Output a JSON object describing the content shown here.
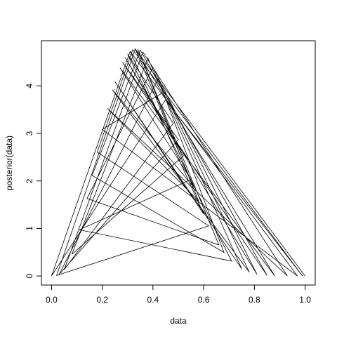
{
  "chart_data": {
    "type": "line",
    "title": "",
    "xlabel": "data",
    "ylabel": "posterior(data)",
    "xlim": [
      -0.04,
      1.04
    ],
    "ylim": [
      -0.19,
      4.95
    ],
    "x_ticks": [
      0.0,
      0.2,
      0.4,
      0.6,
      0.8,
      1.0
    ],
    "x_tick_labels": [
      "0.0",
      "0.2",
      "0.4",
      "0.6",
      "0.8",
      "1.0"
    ],
    "y_ticks": [
      0,
      1,
      2,
      3,
      4
    ],
    "y_tick_labels": [
      "0",
      "1",
      "2",
      "3",
      "4"
    ],
    "grid": false,
    "line_color": "#000000",
    "description_of_series": "Beta-shaped posterior density evaluated at unsorted random points in [0,1] and joined in sampling order; peak about 4.78 near x = 0.31.",
    "peak": {
      "x": 0.31,
      "y": 4.78
    },
    "series": [
      {
        "x": [
          0.31,
          0.0,
          0.45,
          0.99,
          0.32,
          0.18,
          0.62,
          0.02,
          0.33,
          0.88,
          0.27,
          0.55,
          0.11,
          0.71,
          0.3,
          0.48,
          0.05,
          0.36,
          0.93,
          0.22,
          0.58,
          0.34,
          0.66,
          0.14,
          0.4,
          0.81,
          0.29,
          0.52,
          0.08,
          0.38,
          0.75,
          0.25,
          0.6,
          0.31,
          0.97,
          0.2,
          0.44,
          0.68,
          0.16,
          0.35,
          0.85,
          0.28,
          0.5,
          0.03,
          0.42,
          0.78,
          0.24,
          0.56,
          0.33,
          1.0
        ]
      }
    ]
  }
}
